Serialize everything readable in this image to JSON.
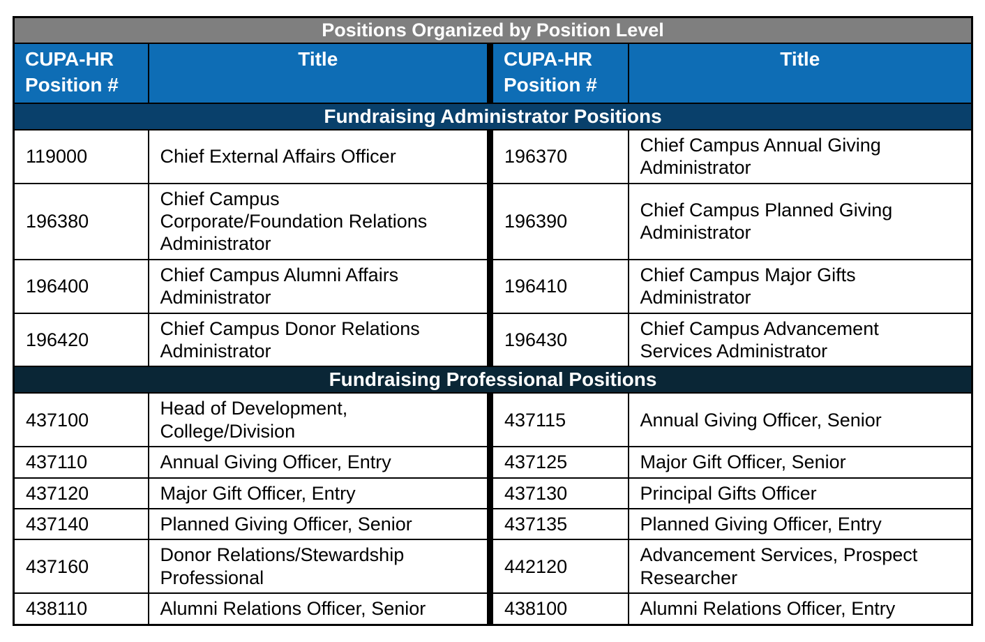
{
  "table": {
    "title": "Positions Organized by Position Level",
    "header": {
      "position_col": "CUPA-HR\nPosition #",
      "title_col": "Title"
    },
    "colors": {
      "title_band_bg": "#7F7F7F",
      "header_bg": "#0E6DB5",
      "band_text": "#FFFFFF",
      "border": "#000000",
      "body_text": "#000000",
      "body_bg": "#FFFFFF",
      "admin_band_bg": "#09406B",
      "professional_band_bg": "#0A2636"
    },
    "sections": [
      {
        "label": "Fundraising Administrator Positions",
        "bg": "#09406B",
        "row_min_height": 72,
        "rows": [
          {
            "left_num": "119000",
            "left_title": "Chief External Affairs Officer",
            "right_num": "196370",
            "right_title": "Chief Campus Annual Giving Administrator"
          },
          {
            "left_num": "196380",
            "left_title": "Chief Campus Corporate/Foundation Relations Administrator",
            "right_num": "196390",
            "right_title": "Chief Campus Planned Giving Administrator"
          },
          {
            "left_num": "196400",
            "left_title": "Chief Campus Alumni Affairs Administrator",
            "right_num": "196410",
            "right_title": "Chief Campus Major Gifts Administrator"
          },
          {
            "left_num": "196420",
            "left_title": "Chief Campus Donor Relations Administrator",
            "right_num": "196430",
            "right_title": "Chief Campus Advancement Services Administrator"
          }
        ]
      },
      {
        "label": "Fundraising Professional Positions",
        "bg": "#0A2636",
        "row_min_height": 36,
        "rows": [
          {
            "left_num": "437100",
            "left_title": "Head of Development, College/Division",
            "right_num": "437115",
            "right_title": "Annual Giving Officer, Senior"
          },
          {
            "left_num": "437110",
            "left_title": "Annual Giving Officer, Entry",
            "right_num": "437125",
            "right_title": "Major Gift Officer, Senior"
          },
          {
            "left_num": "437120",
            "left_title": "Major Gift Officer, Entry",
            "right_num": "437130",
            "right_title": "Principal Gifts Officer"
          },
          {
            "left_num": "437140",
            "left_title": "Planned Giving Officer, Senior",
            "right_num": "437135",
            "right_title": "Planned Giving Officer, Entry"
          },
          {
            "left_num": "437160",
            "left_title": "Donor Relations/Stewardship Professional",
            "right_num": "442120",
            "right_title": "Advancement Services, Prospect Researcher"
          },
          {
            "left_num": "438110",
            "left_title": "Alumni Relations Officer, Senior",
            "right_num": "438100",
            "right_title": "Alumni Relations Officer, Entry"
          }
        ]
      }
    ]
  }
}
